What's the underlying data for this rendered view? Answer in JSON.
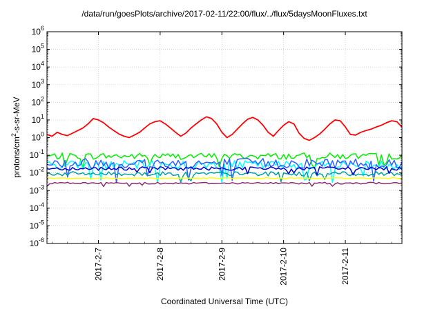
{
  "chart_data": {
    "type": "line",
    "title": "/data/run/goesPlots/archive/2017-02-11/22:00/flux/../flux/5daysMoonFluxes.txt",
    "xlabel": "Coordinated Universal Time (UTC)",
    "ylabel": {
      "prefix": "protons/cm",
      "superscript": "2",
      "suffix": "-s-sr-MeV"
    },
    "y_scale": "log",
    "ylim_exponent": [
      -6,
      6
    ],
    "y_ticks": [
      {
        "base": "10",
        "exp": "-6"
      },
      {
        "base": "10",
        "exp": "-5"
      },
      {
        "base": "10",
        "exp": "-4"
      },
      {
        "base": "10",
        "exp": "-3"
      },
      {
        "base": "10",
        "exp": "-2"
      },
      {
        "base": "10",
        "exp": "-1"
      },
      {
        "base": "10",
        "exp": "0"
      },
      {
        "base": "10",
        "exp": "1"
      },
      {
        "base": "10",
        "exp": "2"
      },
      {
        "base": "10",
        "exp": "3"
      },
      {
        "base": "10",
        "exp": "4"
      },
      {
        "base": "10",
        "exp": "5"
      },
      {
        "base": "10",
        "exp": "6"
      }
    ],
    "x_range_days": [
      "2017-02-06T04:00",
      "2017-02-11T22:00"
    ],
    "x_ticks": [
      "2017-2-7",
      "2017-2-8",
      "2017-2-9",
      "2017-2-10",
      "2017-2-11"
    ],
    "grid": true,
    "series": [
      {
        "color": "#ff0000",
        "x": [
          "2017-02-06T04:00",
          "2017-02-06T06:00",
          "2017-02-06T08:00",
          "2017-02-06T10:00",
          "2017-02-06T12:00",
          "2017-02-06T14:00",
          "2017-02-06T16:00",
          "2017-02-06T18:00",
          "2017-02-06T20:00",
          "2017-02-06T22:00",
          "2017-02-07T00:00",
          "2017-02-07T02:00",
          "2017-02-07T04:00",
          "2017-02-07T06:00",
          "2017-02-07T08:00",
          "2017-02-07T10:00",
          "2017-02-07T12:00",
          "2017-02-07T14:00",
          "2017-02-07T16:00",
          "2017-02-07T18:00",
          "2017-02-07T20:00",
          "2017-02-07T22:00",
          "2017-02-08T00:00",
          "2017-02-08T02:00",
          "2017-02-08T04:00",
          "2017-02-08T06:00",
          "2017-02-08T08:00",
          "2017-02-08T10:00",
          "2017-02-08T12:00",
          "2017-02-08T14:00",
          "2017-02-08T16:00",
          "2017-02-08T18:00",
          "2017-02-08T20:00",
          "2017-02-08T22:00",
          "2017-02-09T00:00",
          "2017-02-09T02:00",
          "2017-02-09T04:00",
          "2017-02-09T06:00",
          "2017-02-09T08:00",
          "2017-02-09T10:00",
          "2017-02-09T12:00",
          "2017-02-09T14:00",
          "2017-02-09T16:00",
          "2017-02-09T18:00",
          "2017-02-09T20:00",
          "2017-02-09T22:00",
          "2017-02-10T00:00",
          "2017-02-10T02:00",
          "2017-02-10T04:00",
          "2017-02-10T06:00",
          "2017-02-10T08:00",
          "2017-02-10T10:00",
          "2017-02-10T12:00",
          "2017-02-10T14:00",
          "2017-02-10T16:00",
          "2017-02-10T18:00",
          "2017-02-10T20:00",
          "2017-02-10T22:00",
          "2017-02-11T00:00",
          "2017-02-11T02:00",
          "2017-02-11T04:00",
          "2017-02-11T06:00",
          "2017-02-11T08:00",
          "2017-02-11T10:00",
          "2017-02-11T12:00",
          "2017-02-11T14:00",
          "2017-02-11T16:00",
          "2017-02-11T18:00",
          "2017-02-11T20:00",
          "2017-02-11T22:00"
        ],
        "values": [
          1.5,
          1.2,
          2.0,
          1.5,
          1.3,
          1.8,
          2.5,
          3.5,
          6.0,
          12,
          10,
          7,
          4,
          2.5,
          1.6,
          1.2,
          1.0,
          1.4,
          2.0,
          3.5,
          6.0,
          8.0,
          9,
          6,
          3.5,
          2.0,
          1.2,
          1.8,
          3.5,
          6.0,
          10,
          15,
          12,
          6,
          2.0,
          1.0,
          1.5,
          3.0,
          6.0,
          11,
          14,
          10,
          5,
          2.0,
          1.2,
          2.5,
          5.0,
          8.0,
          6,
          1.8,
          0.9,
          0.7,
          1.0,
          1.6,
          3.0,
          6.0,
          10,
          9,
          4,
          1.5,
          1.4,
          2.0,
          2.5,
          3.0,
          4.0,
          5.0,
          7.0,
          9.0,
          8,
          4
        ]
      },
      {
        "color": "#00ee00",
        "x_from": "2017-02-06T04:00",
        "x_to": "2017-02-11T22:00",
        "x_step_hours": 1,
        "values_log10_mean": -1.05,
        "values_log10_spread": 0.18
      },
      {
        "color": "#00ffff",
        "x_from": "2017-02-06T04:00",
        "x_to": "2017-02-11T22:00",
        "x_step_hours": 1,
        "values_log10_mean": -1.55,
        "values_log10_spread": 0.25
      },
      {
        "color": "#3060ff",
        "x_from": "2017-02-06T04:00",
        "x_to": "2017-02-11T22:00",
        "x_step_hours": 1,
        "values_log10_mean": -1.45,
        "values_log10_spread": 0.3
      },
      {
        "color": "#0000cc",
        "x_from": "2017-02-06T04:00",
        "x_to": "2017-02-11T22:00",
        "x_step_hours": 1,
        "values_log10_mean": -1.75,
        "values_log10_spread": 0.1
      },
      {
        "color": "#00a0a0",
        "x_from": "2017-02-06T04:00",
        "x_to": "2017-02-11T22:00",
        "x_step_hours": 1,
        "values_log10_mean": -2.05,
        "values_log10_spread": 0.12
      },
      {
        "color": "#ffff00",
        "x_from": "2017-02-06T04:00",
        "x_to": "2017-02-11T22:00",
        "x_step_hours": 1,
        "values_log10_mean": -2.3,
        "values_log10_spread": 0.03
      },
      {
        "color": "#8b2a6b",
        "x_from": "2017-02-06T04:00",
        "x_to": "2017-02-11T22:00",
        "x_step_hours": 1,
        "values_log10_mean": -2.58,
        "values_log10_spread": 0.05
      }
    ]
  }
}
